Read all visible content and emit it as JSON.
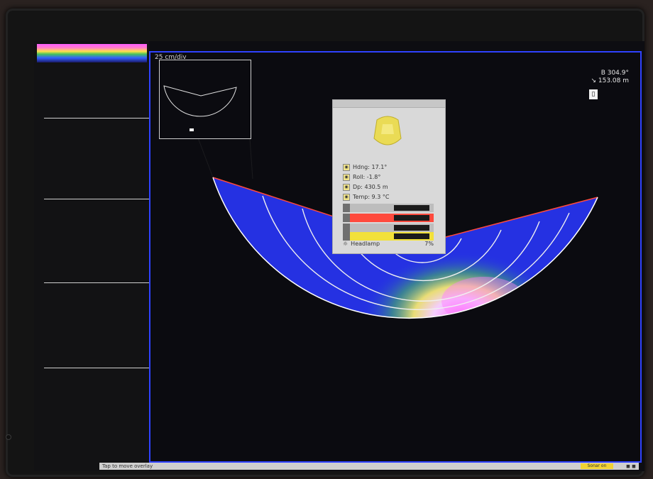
{
  "main_view": {
    "scale_label": "25 cm/div",
    "bearing_label": "B 304.9°",
    "range_label": "↘ 153.08 m"
  },
  "info_panel": {
    "heading_label": "Hdng: 17.1°",
    "roll_label": "Roll: -1.8°",
    "depth_label": "Dp: 430.5 m",
    "temp_label": "Temp: 9.3 °C",
    "headlamp_label": "Headlamp",
    "headlamp_value": "7%"
  },
  "status_bar": {
    "hint": "Tap to move overlay",
    "badge": "Sonar on",
    "icons": "◼ ◼"
  },
  "colors": {
    "frame_blue": "#2f42ff",
    "alert_red": "#ff4a3d",
    "alert_yellow": "#f2e13a"
  }
}
